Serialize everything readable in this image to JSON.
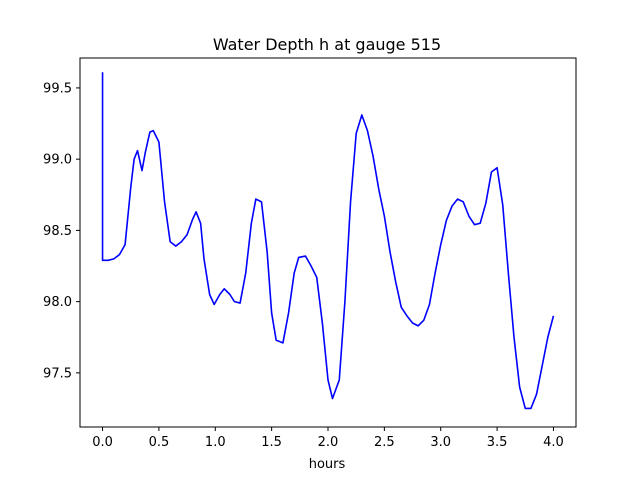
{
  "chart_data": {
    "type": "line",
    "title": "Water Depth h at gauge 515",
    "xlabel": "hours",
    "ylabel": "",
    "xlim": [
      -0.2,
      4.2
    ],
    "ylim": [
      97.12,
      99.71
    ],
    "xticks": [
      0.0,
      0.5,
      1.0,
      1.5,
      2.0,
      2.5,
      3.0,
      3.5,
      4.0
    ],
    "xtick_labels": [
      "0.0",
      "0.5",
      "1.0",
      "1.5",
      "2.0",
      "2.5",
      "3.0",
      "3.5",
      "4.0"
    ],
    "yticks": [
      97.5,
      98.0,
      98.5,
      99.0,
      99.5
    ],
    "ytick_labels": [
      "97.5",
      "98.0",
      "98.5",
      "99.0",
      "99.5"
    ],
    "grid": false,
    "colors": {
      "line": "#0000ff",
      "axes": "#000000",
      "background": "#ffffff"
    },
    "series": [
      {
        "x": [
          0.0,
          0.0,
          0.0,
          0.05,
          0.1,
          0.15,
          0.2,
          0.25,
          0.28,
          0.31,
          0.35,
          0.38,
          0.42,
          0.45,
          0.5,
          0.55,
          0.6,
          0.65,
          0.7,
          0.75,
          0.8,
          0.83,
          0.87,
          0.9,
          0.95,
          0.99,
          1.04,
          1.08,
          1.13,
          1.17,
          1.22,
          1.27,
          1.32,
          1.36,
          1.41,
          1.46,
          1.5,
          1.54,
          1.6,
          1.65,
          1.7,
          1.74,
          1.8,
          1.85,
          1.9,
          1.95,
          2.0,
          2.04,
          2.1,
          2.15,
          2.2,
          2.25,
          2.3,
          2.35,
          2.4,
          2.45,
          2.5,
          2.55,
          2.6,
          2.65,
          2.7,
          2.75,
          2.8,
          2.85,
          2.9,
          2.95,
          3.0,
          3.05,
          3.1,
          3.15,
          3.2,
          3.25,
          3.3,
          3.35,
          3.4,
          3.45,
          3.5,
          3.55,
          3.6,
          3.65,
          3.7,
          3.75,
          3.8,
          3.85,
          3.9,
          3.95,
          4.0
        ],
        "y": [
          99.61,
          98.5,
          98.29,
          98.29,
          98.3,
          98.33,
          98.4,
          98.8,
          99.0,
          99.06,
          98.92,
          99.05,
          99.19,
          99.2,
          99.12,
          98.7,
          98.42,
          98.39,
          98.42,
          98.47,
          98.58,
          98.63,
          98.55,
          98.3,
          98.05,
          97.98,
          98.05,
          98.09,
          98.05,
          98.0,
          97.99,
          98.2,
          98.55,
          98.72,
          98.7,
          98.35,
          97.92,
          97.73,
          97.71,
          97.92,
          98.2,
          98.31,
          98.32,
          98.25,
          98.17,
          97.85,
          97.45,
          97.32,
          97.45,
          98.0,
          98.7,
          99.18,
          99.31,
          99.2,
          99.02,
          98.79,
          98.6,
          98.35,
          98.14,
          97.96,
          97.9,
          97.85,
          97.83,
          97.87,
          97.98,
          98.2,
          98.4,
          98.57,
          98.67,
          98.72,
          98.7,
          98.6,
          98.54,
          98.55,
          98.69,
          98.91,
          98.94,
          98.68,
          98.2,
          97.75,
          97.4,
          97.25,
          97.25,
          97.35,
          97.55,
          97.75,
          97.9
        ]
      }
    ]
  }
}
